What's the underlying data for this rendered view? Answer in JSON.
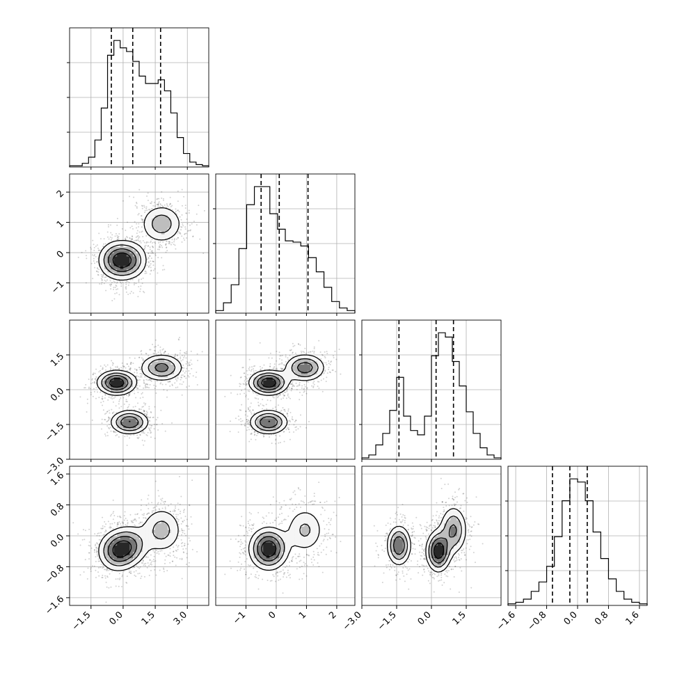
{
  "chart_data": {
    "type": "corner",
    "title": "",
    "grid": true,
    "legend": "none",
    "colors": {
      "line": "#000000",
      "grid": "#b0b0b0",
      "point": "#000000"
    },
    "dimensions": [
      {
        "range": [
          -2.5,
          4.0
        ],
        "ticks": [
          -1.5,
          0.0,
          1.5,
          3.0
        ],
        "tick_labels": [
          "−1.5",
          "0.0",
          "1.5",
          "3.0"
        ],
        "quantiles": [
          -0.55,
          0.45,
          1.75
        ],
        "hist": [
          1,
          1,
          3,
          8,
          22,
          48,
          91,
          103,
          97,
          94,
          86,
          74,
          68,
          68,
          71,
          62,
          44,
          24,
          11,
          4,
          2,
          1
        ]
      },
      {
        "range": [
          -2.0,
          2.6
        ],
        "ticks": [
          -1,
          0,
          1,
          2
        ],
        "tick_labels": [
          "−1",
          "0",
          "1",
          "2"
        ],
        "quantiles": [
          -0.5,
          0.1,
          1.05
        ],
        "hist": [
          2,
          8,
          22,
          50,
          84,
          98,
          98,
          77,
          65,
          56,
          55,
          52,
          43,
          32,
          20,
          9,
          4,
          2
        ]
      },
      {
        "range": [
          -3.0,
          3.0
        ],
        "ticks": [
          -3.0,
          -1.5,
          0.0,
          1.5
        ],
        "tick_labels": [
          "−3.0",
          "−1.5",
          "0.0",
          "1.5"
        ],
        "quantiles": [
          -1.4,
          0.2,
          0.95
        ],
        "hist": [
          1,
          3,
          10,
          18,
          34,
          57,
          30,
          20,
          17,
          30,
          72,
          88,
          85,
          68,
          51,
          33,
          18,
          8,
          3,
          1
        ]
      },
      {
        "range": [
          -1.8,
          1.8
        ],
        "ticks": [
          -1.6,
          -0.8,
          0.0,
          0.8,
          1.6
        ],
        "tick_labels": [
          "−1.6",
          "−0.8",
          "0.0",
          "0.8",
          "1.6"
        ],
        "quantiles": [
          -0.65,
          -0.2,
          0.25
        ],
        "hist": [
          1,
          2,
          4,
          9,
          15,
          25,
          44,
          67,
          81,
          79,
          67,
          47,
          30,
          17,
          9,
          4,
          2,
          1
        ]
      }
    ],
    "components": [
      {
        "w": 0.38,
        "mean": [
          -0.3,
          -0.25,
          0.3,
          -0.4
        ],
        "sd": [
          0.48,
          0.34,
          0.28,
          0.28
        ]
      },
      {
        "w": 0.3,
        "mean": [
          0.3,
          -0.25,
          -1.4,
          -0.25
        ],
        "sd": [
          0.48,
          0.34,
          0.28,
          0.28
        ]
      },
      {
        "w": 0.32,
        "mean": [
          1.8,
          0.95,
          0.95,
          0.15
        ],
        "sd": [
          0.55,
          0.36,
          0.32,
          0.34
        ]
      }
    ]
  }
}
